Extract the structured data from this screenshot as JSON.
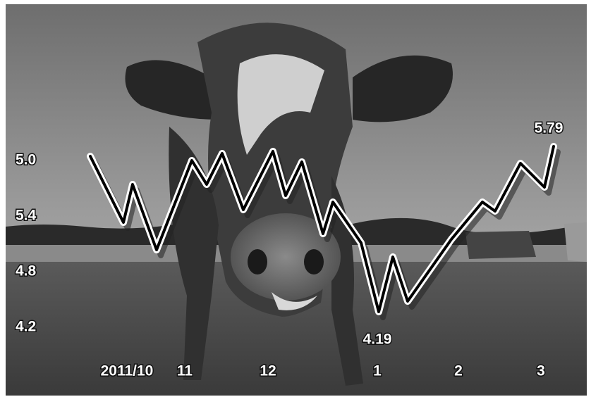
{
  "y_labels": [
    "5.0",
    "5.4",
    "4.8",
    "4.2"
  ],
  "x_labels": [
    "2011/10",
    "11",
    "12",
    "1",
    "2",
    "3"
  ],
  "annotations": [
    "5.79",
    "4.19"
  ]
}
